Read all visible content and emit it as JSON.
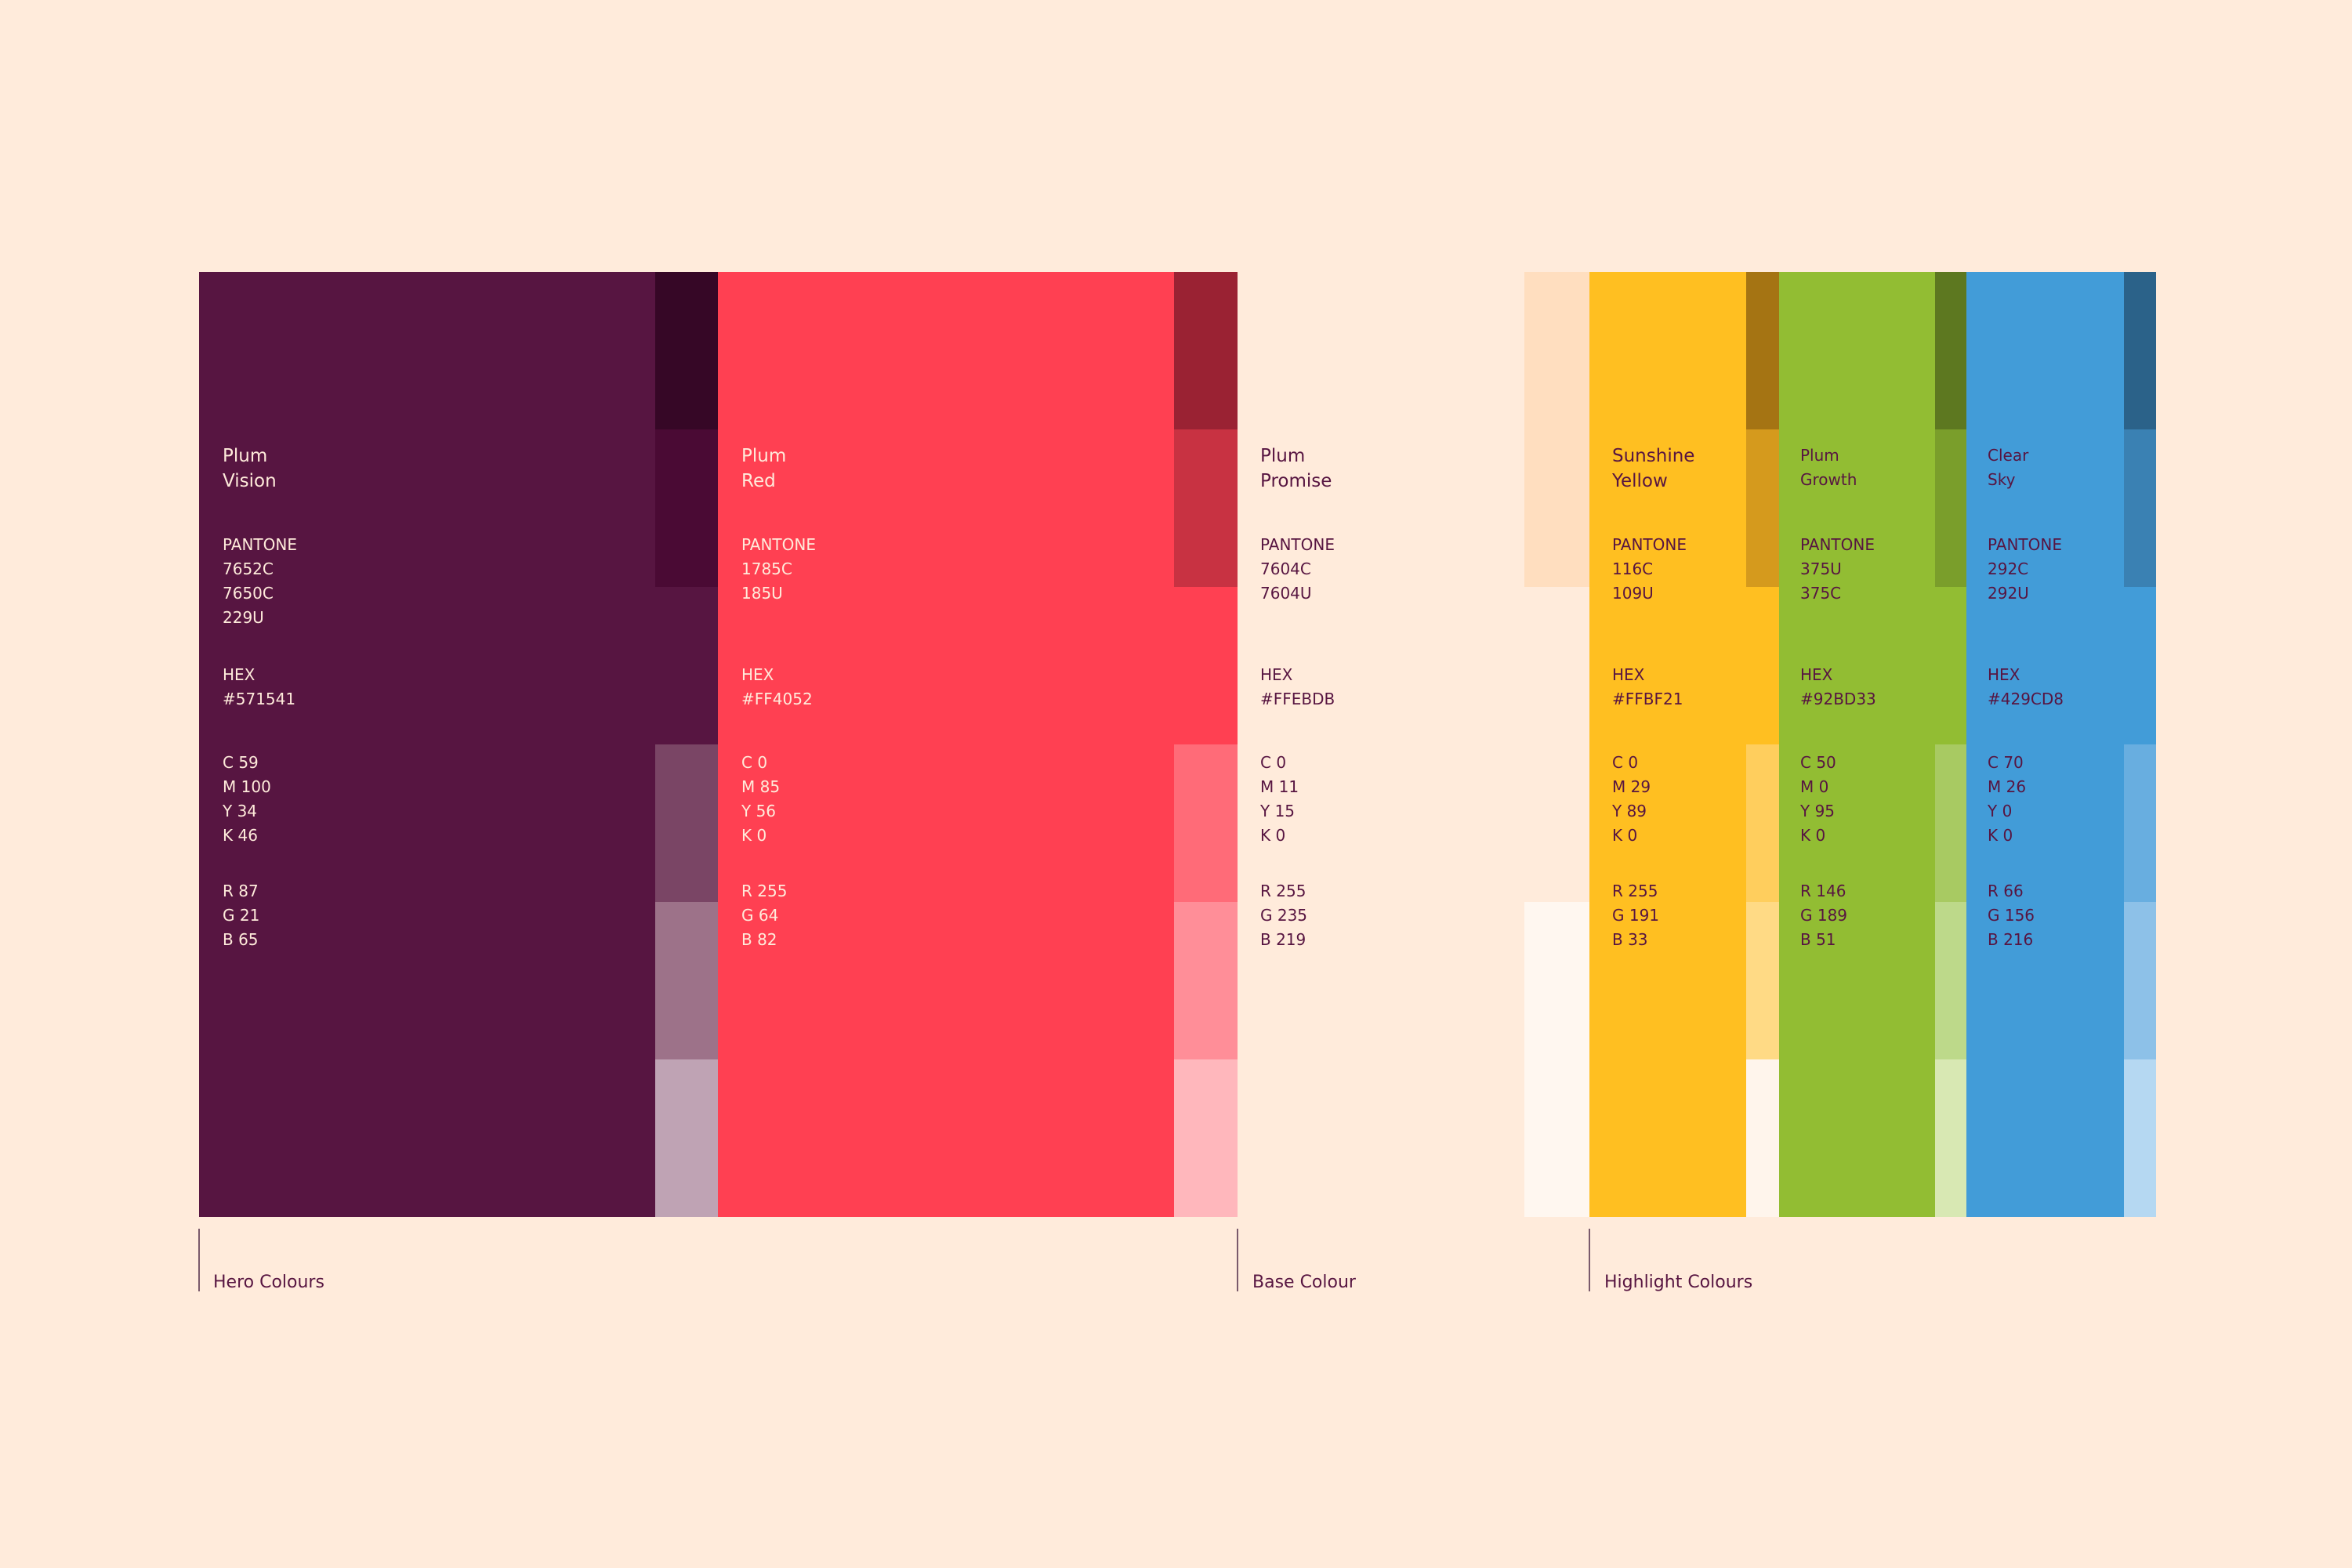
{
  "groups": {
    "hero": "Hero Colours",
    "base": "Base Colour",
    "highlight": "Highlight Colours"
  },
  "colors": {
    "plum_vision": {
      "name": [
        "Plum",
        "Vision"
      ],
      "pantone_label": "PANTONE",
      "pantone": [
        "7652C",
        "7650C",
        "229U"
      ],
      "hex_label": "HEX",
      "hex": "#571541",
      "cmyk": [
        "C 59",
        "M 100",
        "Y 34",
        "K 46"
      ],
      "rgb": [
        "R 87",
        "G 21",
        "B 65"
      ],
      "swatch": "#571541",
      "tints": [
        "#360726",
        "#4A0A34",
        "#571541",
        "#7A4565",
        "#9D7289",
        "#BFA3B4"
      ]
    },
    "plum_red": {
      "name": [
        "Plum",
        "Red"
      ],
      "pantone_label": "PANTONE",
      "pantone": [
        "1785C",
        "185U"
      ],
      "hex_label": "HEX",
      "hex": "#FF4052",
      "cmyk": [
        "C 0",
        "M 85",
        "Y 56",
        "K 0"
      ],
      "rgb": [
        "R 255",
        "G 64",
        "B 82"
      ],
      "swatch": "#FF4052",
      "tints": [
        "#9A2233",
        "#C83242",
        "#FF4052",
        "#FF6B78",
        "#FF8E98",
        "#FFB7BC"
      ]
    },
    "plum_promise": {
      "name": [
        "Plum",
        "Promise"
      ],
      "pantone_label": "PANTONE",
      "pantone": [
        "7604C",
        "7604U"
      ],
      "hex_label": "HEX",
      "hex": "#FFEBDB",
      "cmyk": [
        "C 0",
        "M 11",
        "Y 15",
        "K 0"
      ],
      "rgb": [
        "R 255",
        "G 235",
        "B 219"
      ],
      "swatch": "#FFEBDB",
      "tints": [
        "#FFDEBF",
        "#FFDEBF",
        "#FFEBDB",
        "#FFEBDB",
        "#FFF7F0",
        "#FFF7F0"
      ]
    },
    "sunshine_yellow": {
      "name": [
        "Sunshine",
        "Yellow"
      ],
      "pantone_label": "PANTONE",
      "pantone": [
        "116C",
        "109U"
      ],
      "hex_label": "HEX",
      "hex": "#FFBF21",
      "cmyk": [
        "C 0",
        "M 29",
        "Y 89",
        "K 0"
      ],
      "rgb": [
        "R 255",
        "G 191",
        "B 33"
      ],
      "swatch": "#FFBF21",
      "tints": [
        "#A57413",
        "#D59A1D",
        "#FFBF21",
        "#FFCE5D",
        "#FFDA85",
        "#FFF5EC"
      ]
    },
    "plum_growth": {
      "name": [
        "Plum",
        "Growth"
      ],
      "pantone_label": "PANTONE",
      "pantone": [
        "375U",
        "375C"
      ],
      "hex_label": "HEX",
      "hex": "#92BD33",
      "cmyk": [
        "C 50",
        "M 0",
        "Y 95",
        "K 0"
      ],
      "rgb": [
        "R 146",
        "G 189",
        "B 51"
      ],
      "swatch": "#92BD33",
      "tints": [
        "#5D7820",
        "#7A9E2B",
        "#92BD33",
        "#A8CA62",
        "#BDD98A",
        "#D8E8B3"
      ]
    },
    "clear_sky": {
      "name": [
        "Clear",
        "Sky"
      ],
      "pantone_label": "PANTONE",
      "pantone": [
        "292C",
        "292U"
      ],
      "hex_label": "HEX",
      "hex": "#429CD8",
      "cmyk": [
        "C 70",
        "M 26",
        "Y 0",
        "K 0"
      ],
      "rgb": [
        "R 66",
        "G 156",
        "B 216"
      ],
      "swatch": "#429CD8",
      "tints": [
        "#2B6289",
        "#3A81B3",
        "#429CD8",
        "#68AEE0",
        "#8DC1E8",
        "#B5D8F2"
      ]
    }
  }
}
